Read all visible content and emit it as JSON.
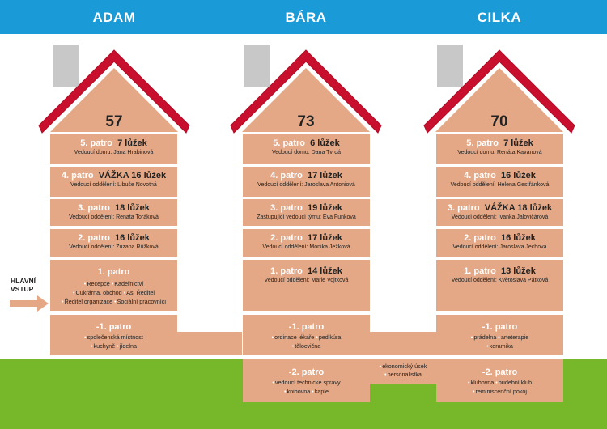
{
  "colors": {
    "sky": "#1a9ad6",
    "grass": "#76b82a",
    "wall": "#e4a886",
    "roof": "#c8102e",
    "chimney": "#c8c8c8"
  },
  "buildings": [
    {
      "name": "ADAM",
      "total": "57",
      "floors": [
        {
          "title": "5. patro",
          "beds": "7 lůžek",
          "sub": "Vedoucí domu: Jana Hrabinová"
        },
        {
          "title": "4. patro",
          "beds": "VÁŽKA 16 lůžek",
          "sub": "Vedoucí oddělení: Libuše Novotná"
        },
        {
          "title": "3. patro",
          "beds": "18 lůžek",
          "sub": "Vedoucí oddělení: Renata Toráková"
        },
        {
          "title": "2. patro",
          "beds": "16 lůžek",
          "sub": "Vedoucí oddělení: Zuzana Růžková"
        },
        {
          "title": "1. patro",
          "list": [
            [
              "Recepce",
              "Kadeřnictví"
            ],
            [
              "Cukrárna, obchod",
              "As. Ředitel"
            ],
            [
              "Ředitel organizace",
              "Sociální pracovníci"
            ]
          ]
        },
        {
          "title": "-1. patro",
          "list": [
            [
              "společenská místnost"
            ],
            [
              "kuchyně",
              "jídelna"
            ]
          ]
        }
      ]
    },
    {
      "name": "BÁRA",
      "total": "73",
      "floors": [
        {
          "title": "5. patro",
          "beds": "6 lůžek",
          "sub": "Vedoucí domu: Dana Tvrdá"
        },
        {
          "title": "4. patro",
          "beds": "17 lůžek",
          "sub": "Vedoucí oddělení: Jaroslava Antoniová"
        },
        {
          "title": "3. patro",
          "beds": "19 lůžek",
          "sub": "Zastupující vedoucí týmu: Eva Funková"
        },
        {
          "title": "2. patro",
          "beds": "17 lůžek",
          "sub": "Vedoucí oddělení: Monika Ježková"
        },
        {
          "title": "1. patro",
          "beds": "14 lůžek",
          "sub": "Vedoucí oddělení: Marie Vojtková"
        },
        {
          "title": "-1. patro",
          "list": [
            [
              "ordinace lékaře",
              "pedikúra"
            ],
            [
              "tělocvična"
            ]
          ]
        },
        {
          "title": "-2. patro",
          "list": [
            [
              "vedoucí technické správy"
            ],
            [
              "knihovna",
              "kaple"
            ]
          ]
        }
      ]
    },
    {
      "name": "CILKA",
      "total": "70",
      "floors": [
        {
          "title": "5. patro",
          "beds": "7 lůžek",
          "sub": "Vedoucí domu: Renáta Kavanová"
        },
        {
          "title": "4. patro",
          "beds": "16 lůžek",
          "sub": "Vedoucí oddělení: Helena Gestřánková"
        },
        {
          "title": "3. patro",
          "beds": "VÁŽKA 18 lůžek",
          "sub": "Vedoucí oddělení: Ivanka Jalovičárová"
        },
        {
          "title": "2. patro",
          "beds": "16 lůžek",
          "sub": "Vedoucí oddělení: Jaroslava Jechová"
        },
        {
          "title": "1. patro",
          "beds": "13 lůžek",
          "sub": "Vedoucí oddělení: Květoslava Pátková"
        },
        {
          "title": "-1. patro",
          "list": [
            [
              "prádelna",
              "arteterapie"
            ],
            [
              "keramika"
            ]
          ]
        },
        {
          "title": "-2. patro",
          "list": [
            [
              "klubovna",
              "hudební klub"
            ],
            [
              "reminiscenční pokoj"
            ]
          ]
        }
      ]
    }
  ],
  "link": {
    "list": [
      [
        "ekonomický úsek"
      ],
      [
        "personalistka"
      ]
    ]
  },
  "entry": {
    "line1": "HLAVNÍ",
    "line2": "VSTUP"
  }
}
